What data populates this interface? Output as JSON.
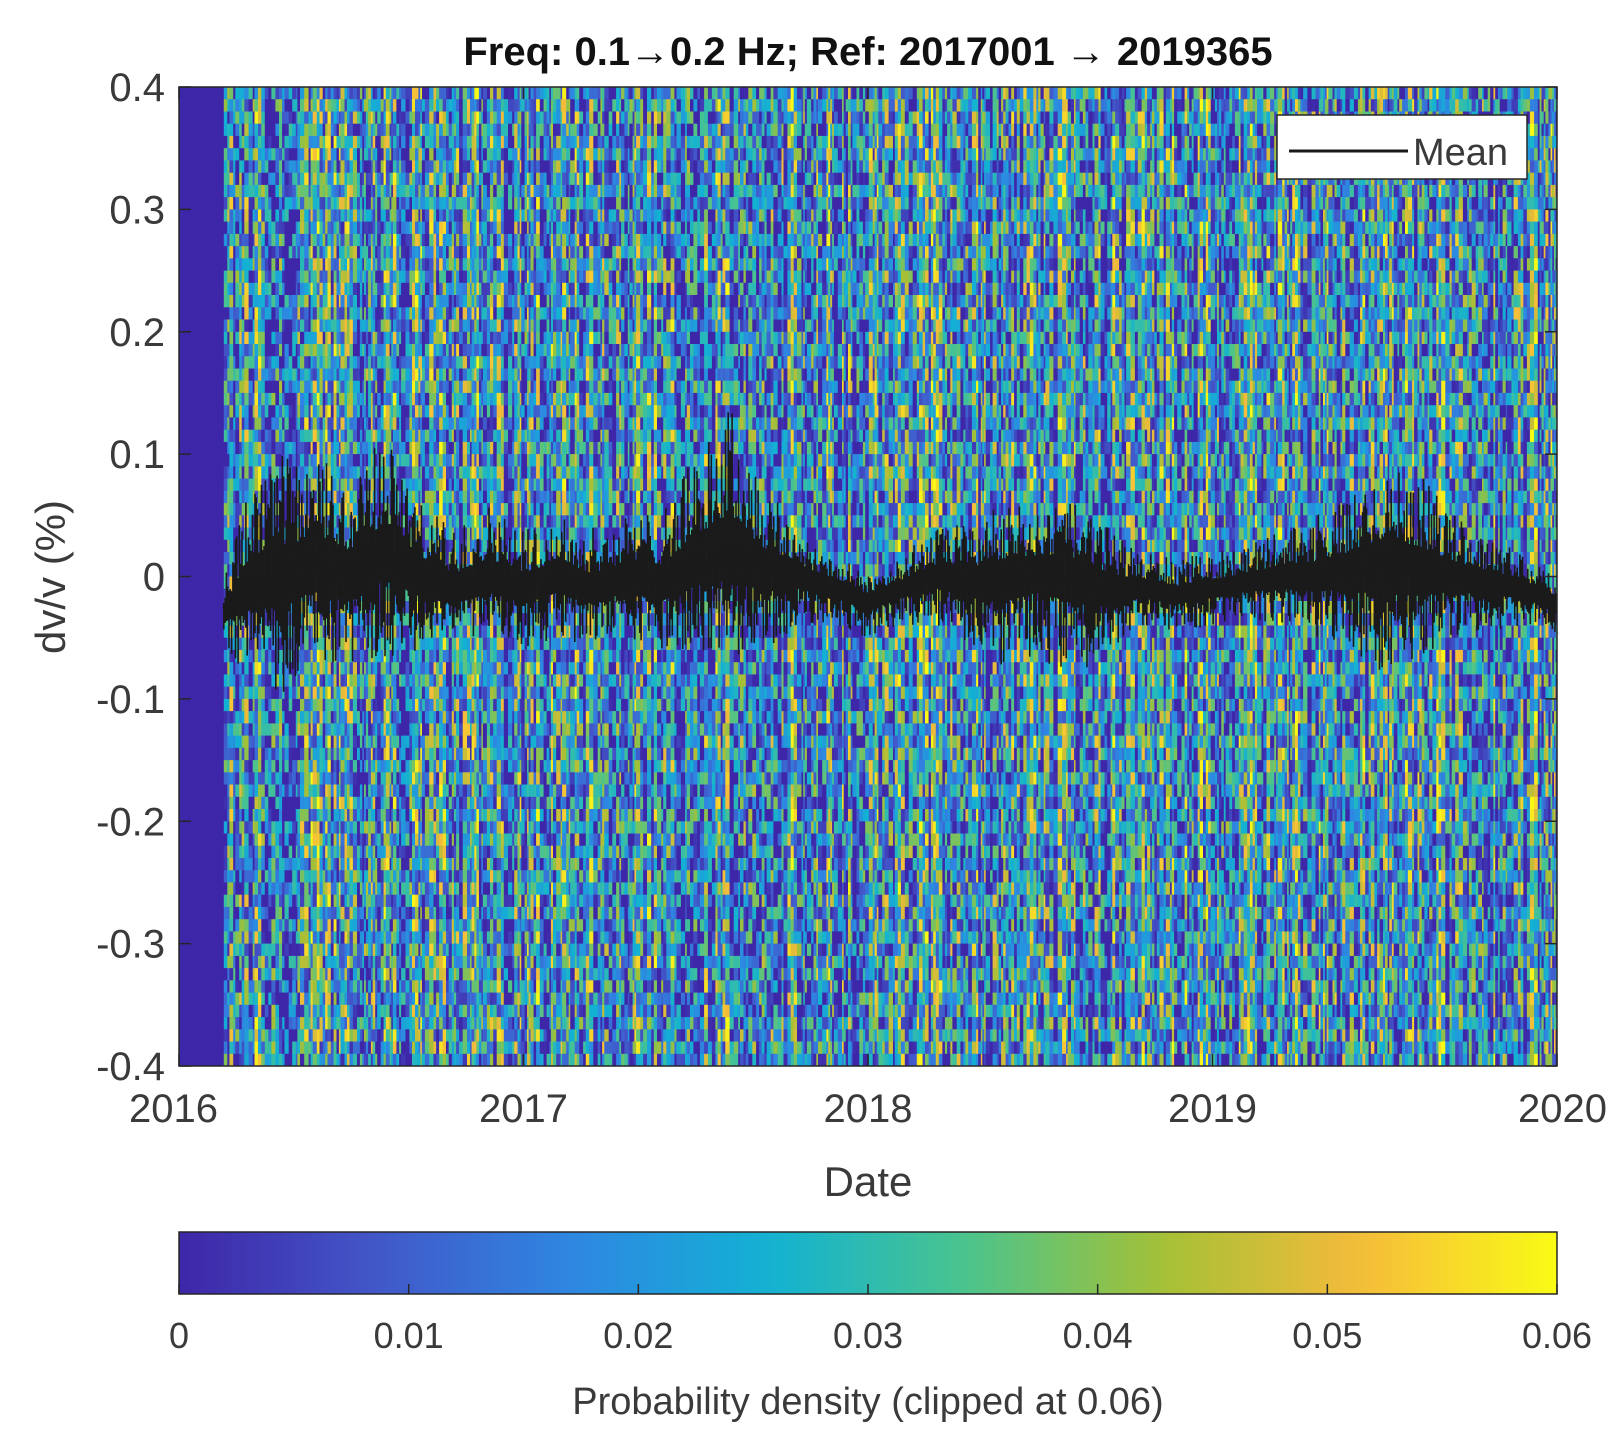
{
  "chart_data": {
    "type": "heatmap",
    "title": "Freq: 0.1→0.2 Hz; Ref: 2017001 → 2019365",
    "xlabel": "Date",
    "ylabel": "dv/v (%)",
    "xlim": [
      2016.0,
      2020.0
    ],
    "ylim": [
      -0.4,
      0.4
    ],
    "xticks": [
      2016,
      2017,
      2018,
      2019,
      2020
    ],
    "xtick_labels": [
      "2016",
      "2017",
      "2018",
      "2019",
      "2020"
    ],
    "yticks": [
      0.4,
      0.3,
      0.2,
      0.1,
      0,
      -0.1,
      -0.2,
      -0.3,
      -0.4
    ],
    "ytick_labels": [
      "0.4",
      "0.3",
      "0.2",
      "0.1",
      "0",
      "-0.1",
      "-0.2",
      "-0.3",
      "-0.4"
    ],
    "data_start": 2016.13,
    "legend": {
      "entries": [
        "Mean"
      ],
      "location": "top-right"
    },
    "mean_series": {
      "name": "Mean",
      "x": [
        2016.13,
        2016.2,
        2016.3,
        2016.4,
        2016.5,
        2016.6,
        2016.7,
        2016.8,
        2016.9,
        2017.0,
        2017.1,
        2017.2,
        2017.3,
        2017.4,
        2017.5,
        2017.6,
        2017.7,
        2017.8,
        2017.9,
        2018.0,
        2018.1,
        2018.2,
        2018.3,
        2018.4,
        2018.5,
        2018.6,
        2018.7,
        2018.8,
        2018.9,
        2019.0,
        2019.1,
        2019.2,
        2019.3,
        2019.4,
        2019.5,
        2019.6,
        2019.7,
        2019.8,
        2019.9,
        2019.99
      ],
      "values": [
        -0.03,
        -0.01,
        0.0,
        0.01,
        0.0,
        0.02,
        0.0,
        -0.01,
        0.0,
        -0.01,
        0.0,
        -0.01,
        0.0,
        -0.005,
        0.01,
        0.02,
        0.005,
        0.0,
        -0.01,
        -0.02,
        -0.01,
        0.0,
        -0.005,
        0.0,
        0.005,
        0.0,
        -0.01,
        -0.01,
        -0.015,
        -0.01,
        -0.005,
        0.0,
        0.0,
        0.005,
        0.01,
        0.005,
        0.0,
        -0.005,
        -0.01,
        -0.02
      ],
      "spread_upper": [
        0.03,
        0.08,
        0.1,
        0.09,
        0.08,
        0.1,
        0.06,
        0.05,
        0.06,
        0.05,
        0.05,
        0.05,
        0.05,
        0.06,
        0.09,
        0.12,
        0.07,
        0.04,
        0.03,
        0.02,
        0.03,
        0.04,
        0.05,
        0.06,
        0.05,
        0.06,
        0.05,
        0.03,
        0.03,
        0.03,
        0.03,
        0.04,
        0.05,
        0.06,
        0.08,
        0.08,
        0.05,
        0.04,
        0.03,
        0.02
      ],
      "spread_lower": [
        0.03,
        0.07,
        0.1,
        0.08,
        0.08,
        0.09,
        0.06,
        0.05,
        0.05,
        0.05,
        0.05,
        0.05,
        0.05,
        0.06,
        0.07,
        0.09,
        0.07,
        0.04,
        0.03,
        0.03,
        0.03,
        0.04,
        0.05,
        0.08,
        0.07,
        0.09,
        0.05,
        0.03,
        0.03,
        0.03,
        0.03,
        0.04,
        0.05,
        0.06,
        0.1,
        0.08,
        0.05,
        0.04,
        0.03,
        0.03
      ]
    },
    "colorbar": {
      "label": "Probability density (clipped at 0.06)",
      "clim": [
        0,
        0.06
      ],
      "ticks": [
        0,
        0.01,
        0.02,
        0.03,
        0.04,
        0.05,
        0.06
      ],
      "tick_labels": [
        "0",
        "0.01",
        "0.02",
        "0.03",
        "0.04",
        "0.05",
        "0.06"
      ],
      "colormap": "parula",
      "colors": [
        "#3e26a8",
        "#4257c9",
        "#2e87e2",
        "#12b2d3",
        "#4bc48d",
        "#a4c036",
        "#f6bb3b",
        "#f9fb15"
      ]
    },
    "background_color": "#3e26a8",
    "line_color": "#1a1a1a"
  }
}
